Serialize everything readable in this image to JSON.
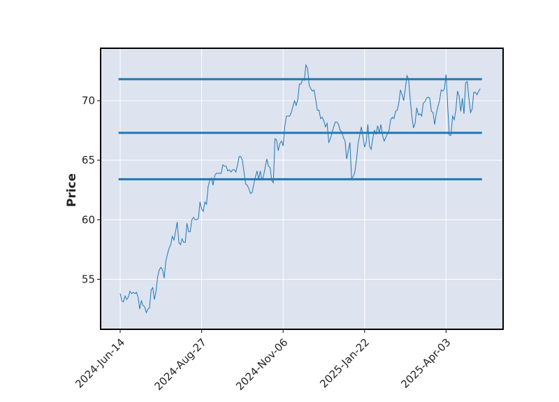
{
  "chart_data": {
    "type": "line",
    "title": "",
    "xlabel": "",
    "ylabel": "Price",
    "x_tick_labels": [
      "2024-Jun-14",
      "2024-Aug-27",
      "2024-Nov-06",
      "2025-Jan-22",
      "2025-Apr-03"
    ],
    "x_tick_positions": [
      0,
      50,
      100,
      150,
      200
    ],
    "y_ticks": [
      55,
      60,
      65,
      70
    ],
    "xlim": [
      -12,
      235
    ],
    "ylim": [
      50.8,
      74.4
    ],
    "grid": true,
    "colors": {
      "background": "#dde3ef",
      "line": "#1f77b4",
      "grid": "#ffffff"
    },
    "horizontal_lines": [
      71.8,
      67.3,
      63.4
    ],
    "series": [
      {
        "values": [
          53.8,
          53.2,
          53.1,
          53.6,
          53.3,
          53.5,
          54.0,
          53.8,
          53.9,
          53.8,
          53.9,
          53.5,
          52.5,
          53.2,
          52.8,
          52.7,
          52.2,
          52.5,
          52.6,
          54.1,
          54.3,
          53.3,
          54.0,
          55.2,
          55.8,
          56.0,
          55.8,
          55.1,
          56.5,
          57.1,
          57.6,
          57.9,
          58.6,
          58.3,
          59.0,
          59.8,
          58.1,
          57.9,
          58.4,
          58.1,
          58.1,
          59.7,
          59.0,
          59.0,
          60.0,
          60.2,
          60.0,
          60.0,
          60.1,
          61.5,
          60.9,
          60.7,
          61.5,
          61.3,
          62.8,
          63.3,
          63.5,
          62.9,
          63.7,
          63.9,
          63.9,
          63.9,
          63.9,
          64.6,
          64.5,
          64.5,
          64.1,
          64.2,
          64.0,
          64.2,
          64.2,
          64.0,
          64.6,
          65.3,
          65.3,
          65.0,
          64.0,
          63.0,
          62.9,
          62.6,
          62.2,
          62.3,
          63.0,
          63.6,
          64.1,
          63.4,
          64.1,
          63.3,
          63.7,
          64.4,
          65.1,
          64.5,
          64.4,
          63.3,
          63.1,
          66.8,
          66.7,
          65.8,
          66.4,
          66.6,
          66.2,
          67.8,
          68.7,
          68.7,
          68.7,
          69.0,
          69.5,
          70.0,
          69.6,
          70.1,
          71.4,
          71.4,
          71.8,
          71.7,
          73.0,
          72.7,
          71.3,
          71.0,
          70.8,
          70.9,
          70.1,
          69.2,
          69.2,
          68.5,
          68.6,
          68.3,
          67.8,
          68.1,
          66.5,
          66.8,
          67.3,
          67.8,
          68.2,
          68.2,
          68.0,
          67.5,
          67.4,
          66.9,
          66.6,
          65.1,
          65.8,
          66.5,
          63.5,
          63.6,
          64.0,
          65.0,
          66.4,
          67.1,
          67.8,
          67.0,
          66.1,
          66.5,
          68.0,
          66.2,
          65.9,
          66.8,
          67.5,
          67.2,
          67.9,
          67.3,
          68.0,
          67.1,
          66.6,
          66.9,
          67.2,
          67.5,
          68.4,
          68.6,
          68.5,
          69.1,
          69.2,
          69.8,
          70.9,
          70.5,
          70.0,
          71.0,
          72.1,
          71.8,
          70.1,
          68.7,
          67.7,
          68.1,
          69.4,
          68.8,
          68.9,
          68.7,
          69.8,
          69.9,
          70.2,
          70.3,
          70.2,
          69.1,
          69.0,
          68.0,
          68.9,
          69.5,
          70.0,
          70.9,
          70.8,
          71.0,
          72.2,
          69.5,
          67.1,
          67.1,
          68.7,
          68.4,
          69.2,
          70.8,
          70.4,
          69.1,
          70.2,
          68.9,
          71.5,
          71.6,
          70.2,
          69.0,
          69.3,
          70.7,
          70.7,
          70.5,
          70.8,
          71.0
        ]
      }
    ]
  }
}
